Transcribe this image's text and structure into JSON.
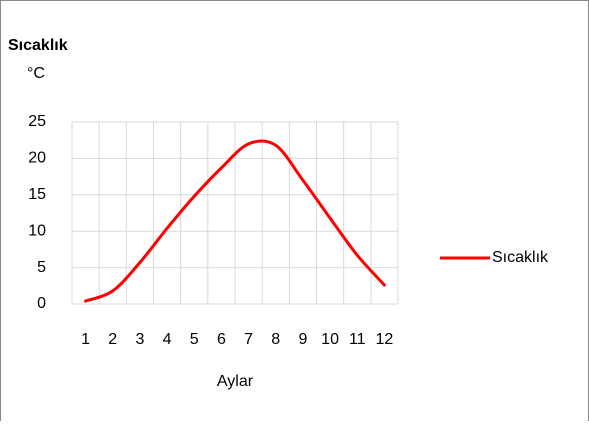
{
  "chart_data": {
    "type": "line",
    "title": "Sıcaklık",
    "y_label": "°C",
    "x_label": "Aylar",
    "categories": [
      "1",
      "2",
      "3",
      "4",
      "5",
      "6",
      "7",
      "8",
      "9",
      "10",
      "11",
      "12"
    ],
    "series": [
      {
        "name": "Sıcaklık",
        "color": "#ff0000",
        "values": [
          0.4,
          1.8,
          5.7,
          10.4,
          14.8,
          18.7,
          22,
          21.8,
          17,
          11.8,
          6.7,
          2.6
        ]
      }
    ],
    "ylim": [
      0,
      25
    ],
    "yticks": [
      0,
      5,
      10,
      15,
      20,
      25
    ],
    "grid": true,
    "legend": "right"
  }
}
